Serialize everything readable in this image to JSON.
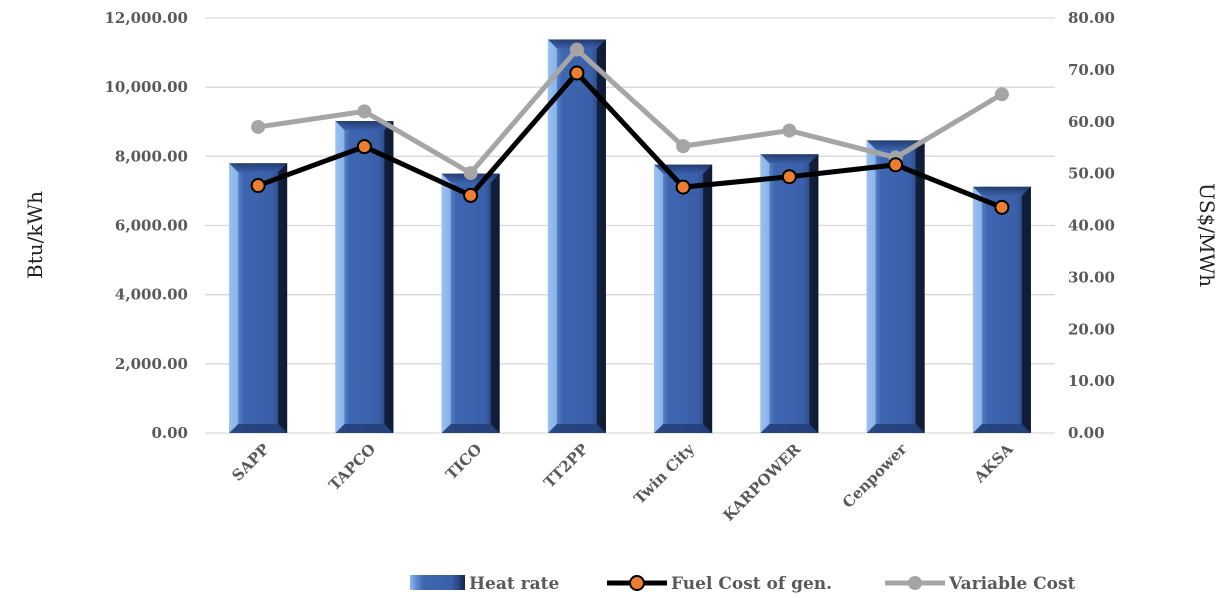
{
  "chart_data": {
    "type": "bar",
    "categories": [
      "SAPP",
      "TAPCO",
      "TICO",
      "TT2PP",
      "Twin City",
      "KARPOWER",
      "Cenpower",
      "AKSA"
    ],
    "series": [
      {
        "name": "Heat rate",
        "type": "bar",
        "axis": "left",
        "color": "#3a5fa8",
        "values": [
          7800,
          9020,
          7500,
          11380,
          7760,
          8060,
          8460,
          7120
        ]
      },
      {
        "name": "Fuel Cost of gen.",
        "type": "line",
        "axis": "right",
        "color": "#000000",
        "marker_color": "#ed7d31",
        "values": [
          47.7,
          55.2,
          45.8,
          69.4,
          47.4,
          49.4,
          51.7,
          43.5
        ]
      },
      {
        "name": "Variable Cost",
        "type": "line",
        "axis": "right",
        "color": "#a5a5a5",
        "marker_color": "#a5a5a5",
        "values": [
          59.0,
          62.0,
          50.1,
          73.9,
          55.3,
          58.3,
          53.1,
          65.3
        ]
      }
    ],
    "ylabel": "Btu/kWh",
    "y2label": "US$/MWh",
    "ylim": [
      0,
      12000
    ],
    "y2lim": [
      0,
      80
    ],
    "yticks": [
      "0.00",
      "2,000.00",
      "4,000.00",
      "6,000.00",
      "8,000.00",
      "10,000.00",
      "12,000.00"
    ],
    "y2ticks": [
      "0.00",
      "10.00",
      "20.00",
      "30.00",
      "40.00",
      "50.00",
      "60.00",
      "70.00",
      "80.00"
    ],
    "grid": true,
    "legend_position": "bottom-right"
  }
}
